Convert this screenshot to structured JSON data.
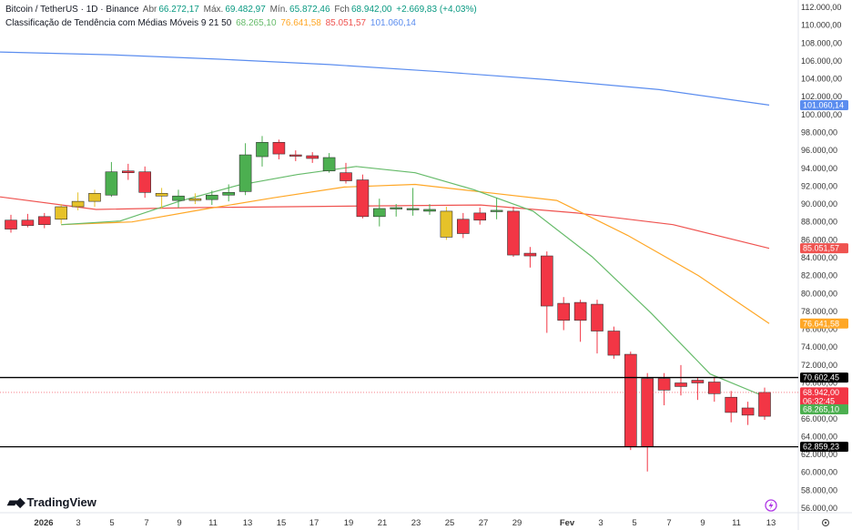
{
  "header": {
    "title": "Bitcoin / TetherUS · 1D · Binance",
    "open_label": "Abr",
    "open_value": "66.272,17",
    "high_label": "Máx.",
    "high_value": "69.482,97",
    "low_label": "Mín.",
    "low_value": "65.872,46",
    "close_label": "Fch",
    "close_value": "68.942,00",
    "change": "+2.669,83 (+4,03%)",
    "indicator_name": "Classificação de Tendência com Médias Móveis 9 21 50",
    "ma9": "68.265,10",
    "ma21": "76.641,58",
    "ma50": "85.051,57",
    "ma200": "101.060,14"
  },
  "colors": {
    "up": "#4caf50",
    "up_light": "#e6c229",
    "down": "#f23645",
    "ma9": "#66bb6a",
    "ma21": "#ffa726",
    "ma50": "#ef5350",
    "ma200": "#5b8def",
    "hline": "#000000",
    "last_price": "#f23645"
  },
  "price_axis": {
    "ticks": [
      "112.000,00",
      "110.000,00",
      "108.000,00",
      "106.000,00",
      "104.000,00",
      "102.000,00",
      "100.000,00",
      "98.000,00",
      "96.000,00",
      "94.000,00",
      "92.000,00",
      "90.000,00",
      "88.000,00",
      "86.000,00",
      "84.000,00",
      "82.000,00",
      "80.000,00",
      "78.000,00",
      "76.000,00",
      "74.000,00",
      "72.000,00",
      "70.000,00",
      "68.000,00",
      "66.000,00",
      "64.000,00",
      "62.000,00",
      "60.000,00",
      "58.000,00",
      "56.000,00"
    ],
    "tag_ma200": "101.060,14",
    "tag_ma50": "85.051,57",
    "tag_ma21": "76.641,58",
    "tag_hline_top": "70.602,45",
    "tag_last": "68.942,00",
    "tag_countdown": "06:32:45",
    "tag_ma9": "68.265,10",
    "tag_hline_bottom": "62.859,23"
  },
  "time_axis": {
    "labels": [
      "2026",
      "3",
      "5",
      "7",
      "9",
      "11",
      "13",
      "15",
      "17",
      "19",
      "21",
      "23",
      "25",
      "27",
      "29",
      "Fev",
      "3",
      "5",
      "7",
      "9",
      "11",
      "13"
    ]
  },
  "branding": {
    "logo_text": "TradingView",
    "logo_icon": "tradingview-logo-icon"
  },
  "chart_data": {
    "type": "candlestick",
    "symbol": "BTC/USDT",
    "interval": "1D",
    "ylim": [
      56000,
      112000
    ],
    "horizontal_lines": [
      70602.45,
      62859.23
    ],
    "candles": [
      {
        "o": 87200,
        "h": 88800,
        "l": 86800,
        "c": 88200,
        "color": "down"
      },
      {
        "o": 88200,
        "h": 88900,
        "l": 87400,
        "c": 87600,
        "color": "down"
      },
      {
        "o": 87700,
        "h": 89000,
        "l": 87300,
        "c": 88600,
        "color": "down"
      },
      {
        "o": 88300,
        "h": 90000,
        "l": 87800,
        "c": 89700,
        "color": "up_light"
      },
      {
        "o": 89700,
        "h": 91300,
        "l": 89300,
        "c": 90300,
        "color": "up_light"
      },
      {
        "o": 90300,
        "h": 91600,
        "l": 89700,
        "c": 91200,
        "color": "up_light"
      },
      {
        "o": 91000,
        "h": 94700,
        "l": 90800,
        "c": 93600,
        "color": "up"
      },
      {
        "o": 93700,
        "h": 94500,
        "l": 92700,
        "c": 93500,
        "color": "down"
      },
      {
        "o": 93600,
        "h": 94200,
        "l": 90700,
        "c": 91300,
        "color": "down"
      },
      {
        "o": 91200,
        "h": 91800,
        "l": 89500,
        "c": 90900,
        "color": "up_light"
      },
      {
        "o": 90900,
        "h": 91600,
        "l": 89600,
        "c": 90400,
        "color": "up"
      },
      {
        "o": 90400,
        "h": 91200,
        "l": 90000,
        "c": 90600,
        "color": "up_light"
      },
      {
        "o": 90500,
        "h": 91500,
        "l": 89900,
        "c": 91000,
        "color": "up"
      },
      {
        "o": 91000,
        "h": 92200,
        "l": 90300,
        "c": 91300,
        "color": "up"
      },
      {
        "o": 91400,
        "h": 96800,
        "l": 91000,
        "c": 95500,
        "color": "up"
      },
      {
        "o": 95300,
        "h": 97600,
        "l": 94200,
        "c": 96900,
        "color": "up"
      },
      {
        "o": 96900,
        "h": 97200,
        "l": 95000,
        "c": 95600,
        "color": "down"
      },
      {
        "o": 95500,
        "h": 96000,
        "l": 94800,
        "c": 95400,
        "color": "down"
      },
      {
        "o": 95400,
        "h": 95800,
        "l": 94600,
        "c": 95100,
        "color": "down"
      },
      {
        "o": 95200,
        "h": 95700,
        "l": 93500,
        "c": 93700,
        "color": "up"
      },
      {
        "o": 93500,
        "h": 94600,
        "l": 92300,
        "c": 92600,
        "color": "down"
      },
      {
        "o": 92700,
        "h": 93300,
        "l": 88400,
        "c": 88600,
        "color": "down"
      },
      {
        "o": 88600,
        "h": 90600,
        "l": 87500,
        "c": 89500,
        "color": "up"
      },
      {
        "o": 89500,
        "h": 90000,
        "l": 88600,
        "c": 89600,
        "color": "up"
      },
      {
        "o": 89500,
        "h": 91800,
        "l": 88700,
        "c": 89500,
        "color": "up"
      },
      {
        "o": 89400,
        "h": 90000,
        "l": 88800,
        "c": 89200,
        "color": "up"
      },
      {
        "o": 89200,
        "h": 89700,
        "l": 86000,
        "c": 86300,
        "color": "up_light"
      },
      {
        "o": 88300,
        "h": 89000,
        "l": 86200,
        "c": 86700,
        "color": "down"
      },
      {
        "o": 88200,
        "h": 89600,
        "l": 87700,
        "c": 89000,
        "color": "down"
      },
      {
        "o": 89200,
        "h": 90700,
        "l": 88300,
        "c": 89300,
        "color": "up"
      },
      {
        "o": 89200,
        "h": 89700,
        "l": 84100,
        "c": 84300,
        "color": "down"
      },
      {
        "o": 84500,
        "h": 85200,
        "l": 82900,
        "c": 84200,
        "color": "down"
      },
      {
        "o": 84200,
        "h": 84700,
        "l": 75600,
        "c": 78600,
        "color": "down"
      },
      {
        "o": 78900,
        "h": 79600,
        "l": 75900,
        "c": 77000,
        "color": "down"
      },
      {
        "o": 79000,
        "h": 79300,
        "l": 74600,
        "c": 77000,
        "color": "down"
      },
      {
        "o": 78800,
        "h": 79300,
        "l": 73300,
        "c": 75800,
        "color": "down"
      },
      {
        "o": 75800,
        "h": 76300,
        "l": 72700,
        "c": 73100,
        "color": "down"
      },
      {
        "o": 73200,
        "h": 73500,
        "l": 62500,
        "c": 62900,
        "color": "down"
      },
      {
        "o": 70500,
        "h": 71100,
        "l": 60100,
        "c": 62900,
        "color": "down"
      },
      {
        "o": 70500,
        "h": 71100,
        "l": 67500,
        "c": 69200,
        "color": "down"
      },
      {
        "o": 70000,
        "h": 72000,
        "l": 68600,
        "c": 69600,
        "color": "down"
      },
      {
        "o": 70300,
        "h": 70600,
        "l": 68100,
        "c": 70000,
        "color": "down"
      },
      {
        "o": 70100,
        "h": 70700,
        "l": 67900,
        "c": 68800,
        "color": "down"
      },
      {
        "o": 68400,
        "h": 69100,
        "l": 65600,
        "c": 66700,
        "color": "down"
      },
      {
        "o": 67200,
        "h": 67900,
        "l": 65300,
        "c": 66400,
        "color": "down"
      },
      {
        "o": 66272.17,
        "h": 69482.97,
        "l": 65872.46,
        "c": 68942.0,
        "color": "down"
      }
    ],
    "ma200": [
      107000,
      106700,
      106200,
      105600,
      104800,
      103900,
      102800,
      101060.14
    ],
    "ma50": [
      90800,
      89400,
      89600,
      89700,
      89800,
      89900,
      89000,
      87700,
      85051.57
    ],
    "ma21": [
      87700,
      88000,
      89400,
      90700,
      91900,
      92200,
      91300,
      90400,
      86500,
      82000,
      76641.58
    ],
    "ma9": [
      87700,
      88100,
      90300,
      92100,
      93300,
      94200,
      93500,
      91600,
      89200,
      84100,
      77800,
      71000,
      68265.1
    ]
  }
}
